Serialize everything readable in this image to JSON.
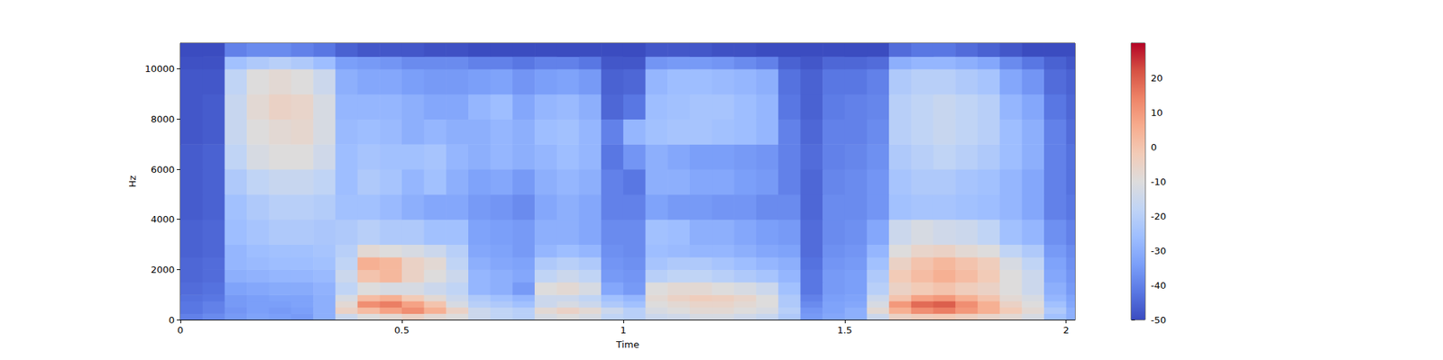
{
  "chart_data": {
    "type": "heatmap",
    "x_label": "Time",
    "y_label": "Hz",
    "xlim": [
      0,
      2.02
    ],
    "xticks": [
      0,
      0.5,
      1,
      1.5,
      2
    ],
    "ylim": [
      0,
      11025
    ],
    "yticks": [
      0,
      2000,
      4000,
      6000,
      8000,
      10000
    ],
    "x_bins": [
      0,
      0.05,
      0.1,
      0.15,
      0.2,
      0.25,
      0.3,
      0.35,
      0.4,
      0.45,
      0.5,
      0.55,
      0.6,
      0.65,
      0.7,
      0.75,
      0.8,
      0.85,
      0.9,
      0.95,
      1,
      1.05,
      1.1,
      1.15,
      1.2,
      1.25,
      1.3,
      1.35,
      1.4,
      1.45,
      1.5,
      1.55,
      1.6,
      1.65,
      1.7,
      1.75,
      1.8,
      1.85,
      1.9,
      1.95,
      2,
      2.02
    ],
    "y_bins": [
      0,
      250,
      500,
      750,
      1000,
      1500,
      2000,
      2500,
      3000,
      4000,
      5000,
      6000,
      7000,
      8000,
      9000,
      10000,
      10500,
      11025
    ],
    "values": [
      [
        -40,
        -38,
        -35,
        -33,
        -34,
        -35,
        -30,
        -15,
        -10,
        -8,
        -5,
        -8,
        -10,
        -15,
        -18,
        -20,
        -12,
        -10,
        -12,
        -18,
        -20,
        -15,
        -14,
        -12,
        -12,
        -14,
        -16,
        -22,
        -35,
        -32,
        -30,
        -15,
        -5,
        -3,
        -2,
        -4,
        -6,
        -8,
        -12,
        -25,
        -30
      ],
      [
        -42,
        -40,
        -36,
        -34,
        -35,
        -34,
        -30,
        -5,
        2,
        8,
        12,
        5,
        -5,
        -15,
        -18,
        -20,
        -8,
        -5,
        -8,
        -15,
        -20,
        -12,
        -10,
        -8,
        -8,
        -10,
        -12,
        -20,
        -36,
        -33,
        -30,
        -8,
        5,
        12,
        15,
        10,
        5,
        -2,
        -8,
        -22,
        -30
      ],
      [
        -42,
        -40,
        -35,
        -34,
        -34,
        -33,
        -30,
        -8,
        12,
        15,
        8,
        0,
        -12,
        -20,
        -22,
        -25,
        -15,
        -12,
        -15,
        -22,
        -25,
        -10,
        -8,
        -6,
        -6,
        -8,
        -10,
        -22,
        -38,
        -33,
        -32,
        -12,
        10,
        18,
        20,
        12,
        5,
        -5,
        -10,
        -25,
        -32
      ],
      [
        -43,
        -42,
        -35,
        -34,
        -33,
        -33,
        -30,
        -12,
        2,
        5,
        -2,
        -8,
        -15,
        -22,
        -25,
        -28,
        -15,
        -15,
        -18,
        -25,
        -28,
        -8,
        -5,
        -3,
        -4,
        -6,
        -10,
        -22,
        -40,
        -34,
        -33,
        -15,
        0,
        8,
        10,
        5,
        0,
        -8,
        -12,
        -28,
        -33
      ],
      [
        -44,
        -43,
        -33,
        -32,
        -31,
        -31,
        -29,
        -18,
        -10,
        -12,
        -12,
        -15,
        -18,
        -28,
        -30,
        -35,
        -10,
        -8,
        -12,
        -32,
        -35,
        -10,
        -8,
        -8,
        -10,
        -12,
        -15,
        -25,
        -42,
        -35,
        -34,
        -20,
        -5,
        -2,
        0,
        -3,
        -5,
        -10,
        -15,
        -30,
        -35
      ],
      [
        -45,
        -44,
        -30,
        -29,
        -28,
        -28,
        -27,
        -15,
        0,
        3,
        -5,
        -10,
        -15,
        -28,
        -30,
        -32,
        -18,
        -15,
        -18,
        -35,
        -36,
        -20,
        -18,
        -18,
        -20,
        -22,
        -24,
        -28,
        -42,
        -35,
        -34,
        -22,
        -2,
        2,
        5,
        2,
        -2,
        -10,
        -15,
        -32,
        -36
      ],
      [
        -45,
        -44,
        -28,
        -27,
        -26,
        -26,
        -25,
        -18,
        5,
        3,
        -5,
        -8,
        -18,
        -30,
        -32,
        -33,
        -22,
        -20,
        -22,
        -36,
        -37,
        -24,
        -22,
        -22,
        -24,
        -26,
        -28,
        -30,
        -43,
        -36,
        -35,
        -25,
        -5,
        0,
        3,
        0,
        -3,
        -12,
        -18,
        -33,
        -37
      ],
      [
        -46,
        -45,
        -28,
        -26,
        -25,
        -25,
        -24,
        -20,
        -8,
        -10,
        -12,
        -15,
        -20,
        -32,
        -33,
        -35,
        -28,
        -26,
        -28,
        -37,
        -38,
        -26,
        -27,
        -28,
        -28,
        -30,
        -32,
        -33,
        -44,
        -37,
        -36,
        -28,
        -10,
        -6,
        -5,
        -8,
        -10,
        -18,
        -22,
        -35,
        -38
      ],
      [
        -46,
        -45,
        -26,
        -24,
        -22,
        -22,
        -23,
        -22,
        -20,
        -22,
        -22,
        -25,
        -25,
        -33,
        -34,
        -35,
        -30,
        -30,
        -32,
        -38,
        -38,
        -25,
        -26,
        -30,
        -30,
        -32,
        -34,
        -35,
        -44,
        -38,
        -37,
        -32,
        -15,
        -12,
        -14,
        -15,
        -18,
        -25,
        -28,
        -37,
        -40
      ],
      [
        -47,
        -46,
        -25,
        -22,
        -20,
        -20,
        -21,
        -25,
        -25,
        -27,
        -30,
        -32,
        -32,
        -35,
        -36,
        -38,
        -32,
        -30,
        -32,
        -40,
        -40,
        -33,
        -35,
        -35,
        -36,
        -36,
        -38,
        -38,
        -45,
        -38,
        -38,
        -36,
        -25,
        -24,
        -24,
        -25,
        -26,
        -28,
        -32,
        -40,
        -42
      ],
      [
        -47,
        -46,
        -22,
        -18,
        -16,
        -16,
        -18,
        -26,
        -22,
        -24,
        -28,
        -25,
        -30,
        -33,
        -32,
        -35,
        -30,
        -28,
        -30,
        -40,
        -42,
        -30,
        -30,
        -32,
        -32,
        -34,
        -35,
        -40,
        -45,
        -39,
        -38,
        -36,
        -24,
        -22,
        -22,
        -24,
        -25,
        -28,
        -32,
        -40,
        -43
      ],
      [
        -47,
        -46,
        -18,
        -12,
        -10,
        -10,
        -14,
        -26,
        -24,
        -25,
        -25,
        -24,
        -28,
        -30,
        -28,
        -30,
        -28,
        -26,
        -28,
        -42,
        -36,
        -30,
        -32,
        -34,
        -34,
        -35,
        -36,
        -40,
        -44,
        -40,
        -39,
        -37,
        -22,
        -20,
        -18,
        -20,
        -22,
        -26,
        -30,
        -40,
        -43
      ],
      [
        -48,
        -47,
        -16,
        -10,
        -8,
        -7,
        -12,
        -27,
        -26,
        -27,
        -30,
        -28,
        -30,
        -30,
        -28,
        -30,
        -26,
        -25,
        -28,
        -40,
        -28,
        -25,
        -24,
        -24,
        -25,
        -26,
        -28,
        -40,
        -45,
        -40,
        -40,
        -38,
        -20,
        -18,
        -16,
        -18,
        -20,
        -26,
        -30,
        -40,
        -44
      ],
      [
        -48,
        -47,
        -16,
        -8,
        -5,
        -6,
        -12,
        -28,
        -28,
        -28,
        -30,
        -32,
        -32,
        -28,
        -26,
        -32,
        -28,
        -27,
        -30,
        -45,
        -42,
        -26,
        -25,
        -24,
        -24,
        -26,
        -28,
        -42,
        -46,
        -41,
        -40,
        -39,
        -20,
        -18,
        -16,
        -18,
        -20,
        -28,
        -32,
        -42,
        -45
      ],
      [
        -48,
        -48,
        -18,
        -10,
        -8,
        -10,
        -15,
        -30,
        -32,
        -32,
        -34,
        -35,
        -35,
        -34,
        -33,
        -36,
        -34,
        -33,
        -35,
        -46,
        -45,
        -28,
        -26,
        -26,
        -27,
        -28,
        -30,
        -43,
        -46,
        -42,
        -42,
        -40,
        -22,
        -20,
        -20,
        -22,
        -24,
        -32,
        -36,
        -44,
        -46
      ],
      [
        -49,
        -49,
        -25,
        -22,
        -20,
        -22,
        -26,
        -34,
        -35,
        -36,
        -38,
        -38,
        -38,
        -40,
        -40,
        -42,
        -40,
        -40,
        -42,
        -48,
        -48,
        -36,
        -35,
        -35,
        -36,
        -38,
        -40,
        -46,
        -48,
        -45,
        -45,
        -44,
        -30,
        -28,
        -28,
        -30,
        -32,
        -38,
        -42,
        -46,
        -48
      ],
      [
        -50,
        -50,
        -40,
        -38,
        -38,
        -40,
        -42,
        -46,
        -48,
        -48,
        -48,
        -49,
        -49,
        -50,
        -50,
        -50,
        -50,
        -50,
        -50,
        -50,
        -50,
        -48,
        -48,
        -48,
        -49,
        -49,
        -50,
        -50,
        -50,
        -50,
        -50,
        -50,
        -44,
        -42,
        -42,
        -44,
        -46,
        -48,
        -50,
        -50,
        -50
      ]
    ],
    "colorbar": {
      "range": [
        -50,
        30
      ],
      "ticks": [
        -50,
        -40,
        -30,
        -20,
        -10,
        0,
        10,
        20
      ]
    }
  }
}
